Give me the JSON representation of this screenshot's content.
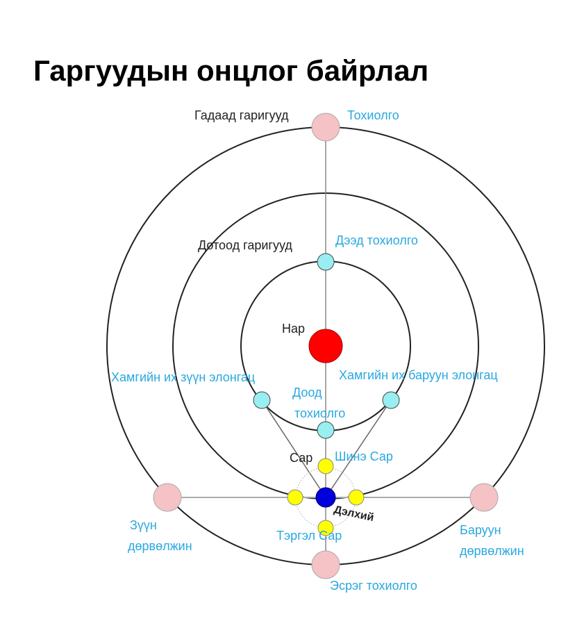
{
  "title": "Гаргуудын онцлог байрлал",
  "colors": {
    "sun": "#ff0000",
    "earth": "#0000dd",
    "moon": "#ffff00",
    "inner_planet": "#99eef2",
    "outer_planet": "#f5c2c6",
    "orbit_line": "#222222",
    "axis_line": "#aaaaaa",
    "label_black": "#222222",
    "label_blue": "#29a8e0"
  },
  "labels": {
    "outer_planets": "Гадаад гаригууд",
    "conjunction": "Тохиолго",
    "inner_planets": "Дотоод гаригууд",
    "superior_conjunction": "Дээд тохиолго",
    "sun": "Нар",
    "greatest_east_elongation": "Хамгийн их зүүн элонгац",
    "greatest_west_elongation": "Хамгийн их баруун элонгац",
    "inferior_conjunction_1": "Доод",
    "inferior_conjunction_2": "тохиолго",
    "moon": "Сар",
    "new_moon": "Шинэ Сар",
    "earth": "Дэлхий",
    "full_moon": "Тэргэл Сар",
    "east_quadrature_1": "Зүүн",
    "east_quadrature_2": "дөрвөлжин",
    "west_quadrature_1": "Баруун",
    "west_quadrature_2": "дөрвөлжин",
    "opposition": "Эсрэг тохиолго"
  }
}
